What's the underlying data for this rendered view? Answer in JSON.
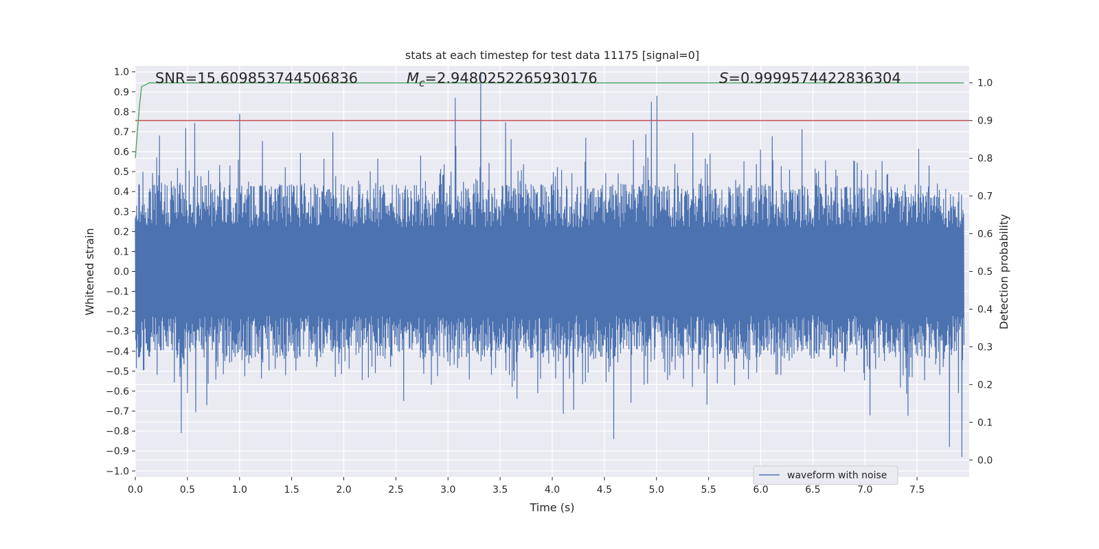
{
  "chart_data": {
    "type": "line",
    "title": "stats at each timestep for test data 11175 [signal=0]",
    "xlabel": "Time (s)",
    "ylabel": "Whitened strain",
    "y2label": "Detection probability",
    "xlim": [
      0.0,
      8.0
    ],
    "ylim": [
      -1.03,
      1.03
    ],
    "y2lim": [
      -0.045,
      1.045
    ],
    "xticks": [
      "0.0",
      "0.5",
      "1.0",
      "1.5",
      "2.0",
      "2.5",
      "3.0",
      "3.5",
      "4.0",
      "4.5",
      "5.0",
      "5.5",
      "6.0",
      "6.5",
      "7.0",
      "7.5"
    ],
    "yticks": [
      "1.0",
      "0.9",
      "0.8",
      "0.7",
      "0.6",
      "0.5",
      "0.4",
      "0.3",
      "0.2",
      "0.1",
      "0.0",
      "−0.1",
      "−0.2",
      "−0.3",
      "−0.4",
      "−0.5",
      "−0.6",
      "−0.7",
      "−0.8",
      "−0.9",
      "−1.0"
    ],
    "y2ticks": [
      "1.0",
      "0.9",
      "0.8",
      "0.7",
      "0.6",
      "0.5",
      "0.4",
      "0.3",
      "0.2",
      "0.1",
      "0.0"
    ],
    "annotations": {
      "snr": "SNR=15.609853744506836",
      "mc_symbol": "M",
      "mc_sub": "c",
      "mc_value": "=2.9480252265930176",
      "s_symbol": "S",
      "s_value": "=0.9999574422836304"
    },
    "legend": {
      "label": "waveform with noise",
      "position": "lower-right"
    },
    "series": [
      {
        "name": "waveform with noise",
        "color": "#4c72b0",
        "axis": "left",
        "description": "noisy whitened strain, dense oscillation roughly within ±0.5 with sparse excursions",
        "peaks": [
          {
            "x": 3.31,
            "y": 1.0
          },
          {
            "x": 3.07,
            "y": 0.87
          },
          {
            "x": 5.0,
            "y": 0.88
          },
          {
            "x": 4.95,
            "y": 0.85
          },
          {
            "x": 1.0,
            "y": 0.79
          },
          {
            "x": 7.93,
            "y": -0.93
          },
          {
            "x": 0.44,
            "y": -0.81
          },
          {
            "x": 4.59,
            "y": -0.84
          },
          {
            "x": 7.81,
            "y": -0.88
          }
        ]
      },
      {
        "name": "detection probability",
        "color": "#55a868",
        "axis": "right",
        "x": [
          0.0,
          0.02,
          0.04,
          0.06,
          0.1,
          0.13,
          7.95
        ],
        "values": [
          0.8,
          0.87,
          0.94,
          0.99,
          0.995,
          1.0,
          1.0
        ]
      }
    ],
    "threshold": {
      "value": 0.9,
      "axis": "right",
      "color": "#c44e52"
    }
  }
}
